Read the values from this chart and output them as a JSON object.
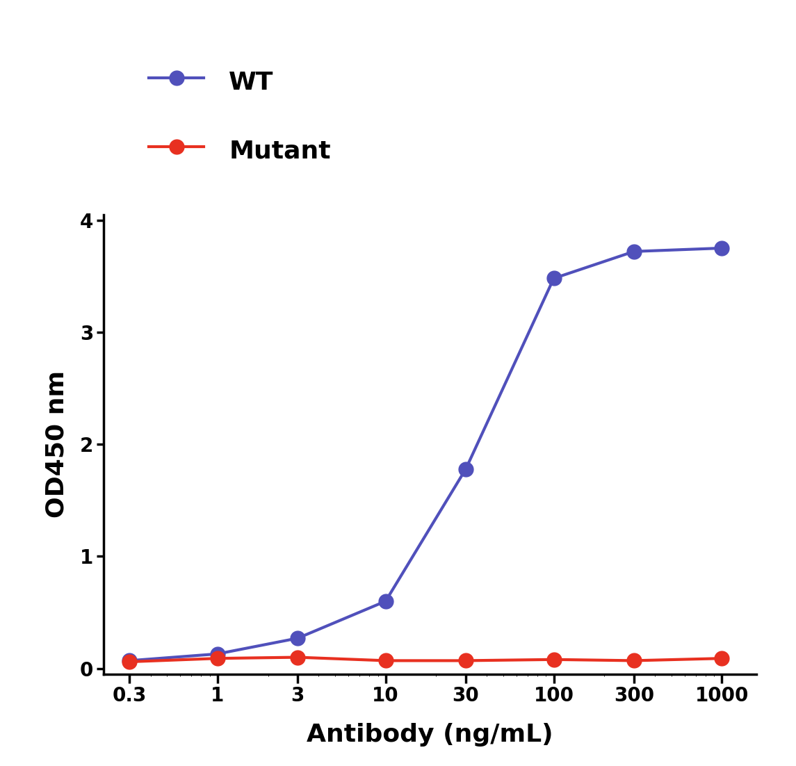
{
  "x_values": [
    0.3,
    1,
    3,
    10,
    30,
    100,
    300,
    1000
  ],
  "wt_y": [
    0.07,
    0.13,
    0.27,
    0.6,
    1.78,
    3.48,
    3.72,
    3.75
  ],
  "mutant_y": [
    0.06,
    0.09,
    0.1,
    0.07,
    0.07,
    0.08,
    0.07,
    0.09
  ],
  "wt_color": "#5050bb",
  "mutant_color": "#e83020",
  "wt_label": "WT",
  "mutant_label": "Mutant",
  "ylabel": "OD450 nm",
  "xlabel": "Antibody (ng/mL)",
  "ylim": [
    -0.05,
    4.05
  ],
  "yticks": [
    0,
    1,
    2,
    3,
    4
  ],
  "x_tick_labels": [
    "0.3",
    "1",
    "3",
    "10",
    "30",
    "100",
    "300",
    "1000"
  ],
  "line_width": 3.0,
  "marker_size": 15,
  "ylabel_fontsize": 26,
  "xlabel_fontsize": 26,
  "tick_fontsize": 20,
  "legend_fontsize": 26,
  "background_color": "#ffffff"
}
